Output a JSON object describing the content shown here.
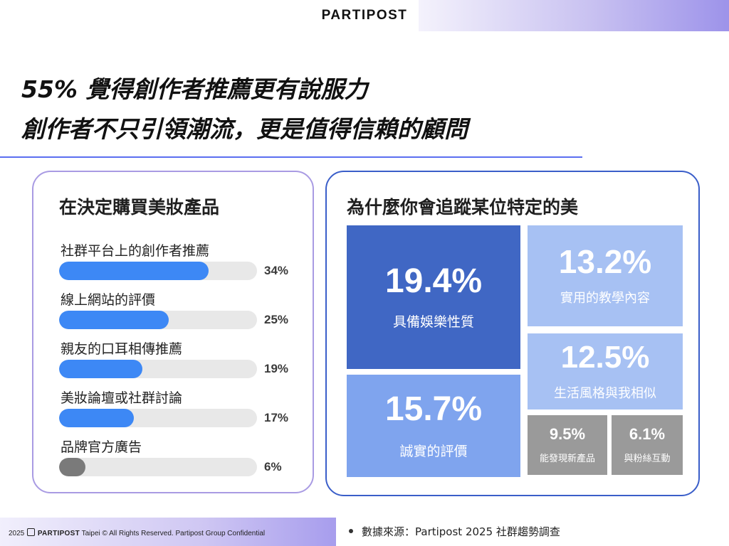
{
  "brand": "PARTIPOST",
  "headline": {
    "line1": "55% 覺得創作者推薦更有說服力",
    "line2": "創作者不只引領潮流，更是值得信賴的顧問"
  },
  "colors": {
    "accent_blue": "#3d88f5",
    "muted_gray": "#7a7a7a",
    "tile_dark": "#4067c4",
    "tile_mid": "#7fa4ee",
    "tile_light": "#a7c1f3",
    "tile_gray": "#9a9a9a"
  },
  "chart_data": [
    {
      "type": "bar",
      "orientation": "horizontal",
      "title": "在決定購買美妝產品",
      "categories": [
        "社群平台上的創作者推薦",
        "線上網站的評價",
        "親友的口耳相傳推薦",
        "美妝論壇或社群討論",
        "品牌官方廣告"
      ],
      "values": [
        34,
        25,
        19,
        17,
        6
      ],
      "value_labels": [
        "34%",
        "25%",
        "19%",
        "17%",
        "6%"
      ],
      "unit": "%",
      "xlim": [
        0,
        45
      ],
      "bar_colors": [
        "#3d88f5",
        "#3d88f5",
        "#3d88f5",
        "#3d88f5",
        "#7a7a7a"
      ]
    },
    {
      "type": "treemap",
      "title": "為什麼你會追蹤某位特定的美",
      "items": [
        {
          "label": "具備娛樂性質",
          "value": 19.4,
          "value_label": "19.4%",
          "color": "#4067c4"
        },
        {
          "label": "誠實的評價",
          "value": 15.7,
          "value_label": "15.7%",
          "color": "#7fa4ee"
        },
        {
          "label": "實用的教學內容",
          "value": 13.2,
          "value_label": "13.2%",
          "color": "#a7c1f3"
        },
        {
          "label": "生活風格與我相似",
          "value": 12.5,
          "value_label": "12.5%",
          "color": "#a7c1f3"
        },
        {
          "label": "能發現新產品",
          "value": 9.5,
          "value_label": "9.5%",
          "color": "#9a9a9a"
        },
        {
          "label": "與粉絲互動",
          "value": 6.1,
          "value_label": "6.1%",
          "color": "#9a9a9a"
        }
      ]
    }
  ],
  "footer": {
    "year": "2025",
    "brand": "PARTIPOST",
    "text": "Taipei © All Rights Reserved. Partipost Group Confidential",
    "source": "數據來源：Partipost 2025 社群趨勢調查"
  }
}
